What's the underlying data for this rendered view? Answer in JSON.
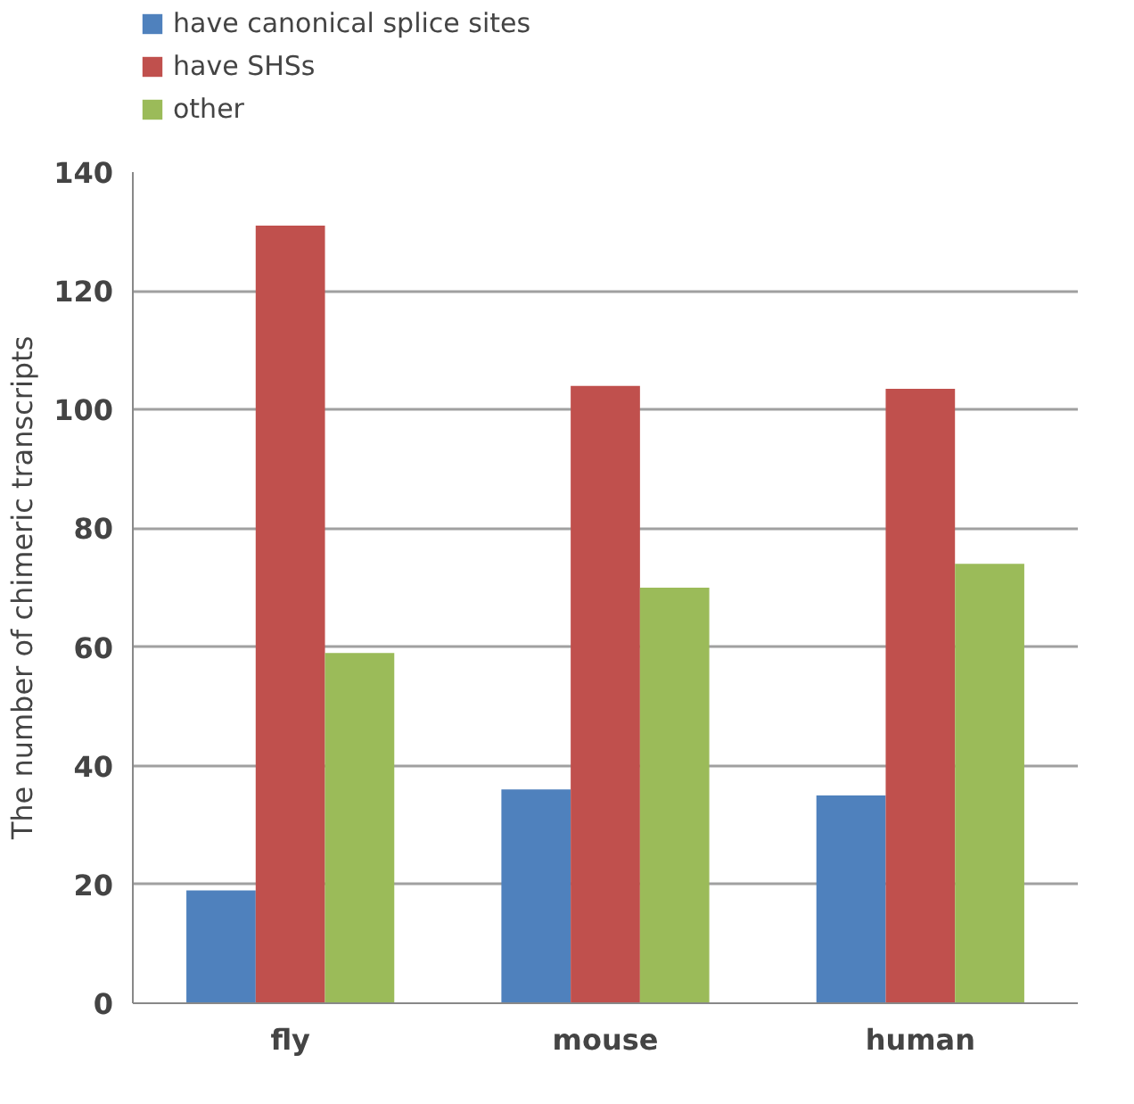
{
  "chart_data": {
    "type": "bar",
    "ylabel": "The number of chimeric transcripts",
    "categories": [
      "fly",
      "mouse",
      "human"
    ],
    "series": [
      {
        "name": "have canonical splice sites",
        "color": "#4f81bd",
        "values": [
          19,
          36,
          35
        ]
      },
      {
        "name": "have SHSs",
        "color": "#c0504d",
        "values": [
          131,
          104,
          103.5
        ]
      },
      {
        "name": "other",
        "color": "#9bbb59",
        "values": [
          59,
          70,
          74
        ]
      }
    ],
    "ylim": [
      0,
      140
    ],
    "yticks": [
      0,
      20,
      40,
      60,
      80,
      100,
      120,
      140
    ],
    "grid": "y",
    "legend": "top left"
  }
}
